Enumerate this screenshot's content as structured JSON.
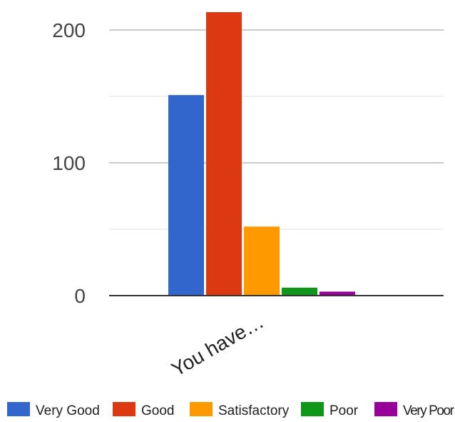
{
  "chart_data": {
    "type": "bar",
    "categories": [
      "You have…"
    ],
    "series": [
      {
        "name": "Very Good",
        "values": [
          151
        ],
        "color": "#3366cc"
      },
      {
        "name": "Good",
        "values": [
          214
        ],
        "color": "#dc3912"
      },
      {
        "name": "Satisfactory",
        "values": [
          52
        ],
        "color": "#ff9900"
      },
      {
        "name": "Poor",
        "values": [
          6
        ],
        "color": "#109618"
      },
      {
        "name": "Very Poor",
        "values": [
          3
        ],
        "color": "#990099"
      }
    ],
    "y_ticks": [
      "0",
      "100",
      "200"
    ],
    "ylim": [
      0,
      200
    ],
    "grid": true,
    "legend_position": "bottom"
  }
}
